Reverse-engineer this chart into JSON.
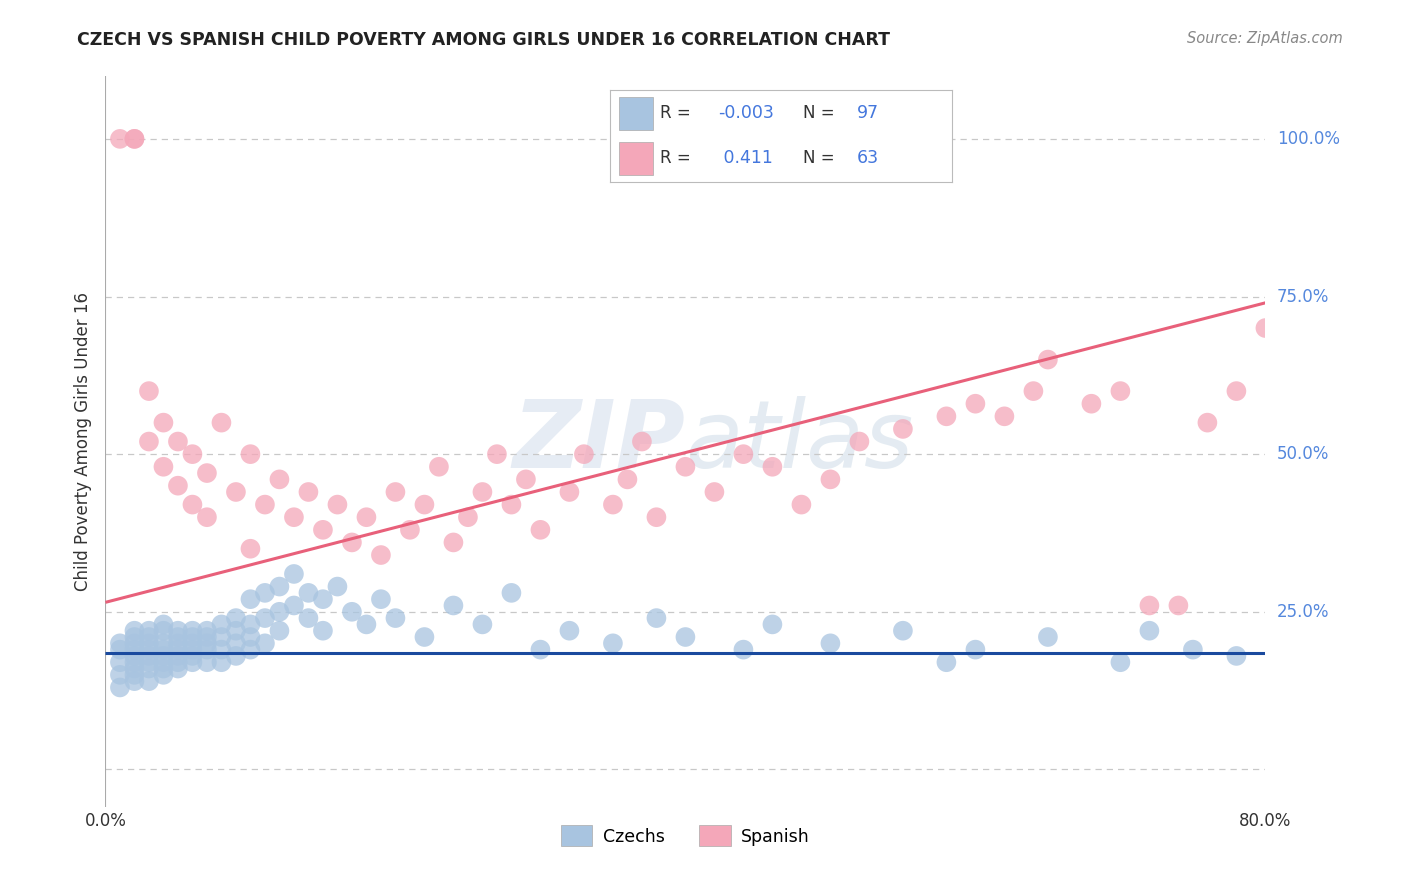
{
  "title": "CZECH VS SPANISH CHILD POVERTY AMONG GIRLS UNDER 16 CORRELATION CHART",
  "source": "Source: ZipAtlas.com",
  "ylabel": "Child Poverty Among Girls Under 16",
  "legend_czech_R": "-0.003",
  "legend_czech_N": "97",
  "legend_spanish_R": "0.411",
  "legend_spanish_N": "63",
  "xlim": [
    0.0,
    0.8
  ],
  "ylim": [
    -0.06,
    1.1
  ],
  "czech_color": "#a8c4e0",
  "spanish_color": "#f4a7b9",
  "czech_line_color": "#1a4a9e",
  "spanish_line_color": "#e8607a",
  "watermark_zip": "ZIP",
  "watermark_atlas": "atlas",
  "background_color": "#ffffff",
  "grid_color": "#c8c8c8",
  "right_y_color": "#5588dd",
  "title_color": "#222222",
  "source_color": "#888888",
  "czech_scatter_x": [
    0.01,
    0.01,
    0.01,
    0.01,
    0.01,
    0.02,
    0.02,
    0.02,
    0.02,
    0.02,
    0.02,
    0.02,
    0.02,
    0.02,
    0.03,
    0.03,
    0.03,
    0.03,
    0.03,
    0.03,
    0.03,
    0.03,
    0.04,
    0.04,
    0.04,
    0.04,
    0.04,
    0.04,
    0.04,
    0.04,
    0.05,
    0.05,
    0.05,
    0.05,
    0.05,
    0.05,
    0.05,
    0.06,
    0.06,
    0.06,
    0.06,
    0.06,
    0.06,
    0.07,
    0.07,
    0.07,
    0.07,
    0.07,
    0.08,
    0.08,
    0.08,
    0.08,
    0.09,
    0.09,
    0.09,
    0.09,
    0.1,
    0.1,
    0.1,
    0.1,
    0.11,
    0.11,
    0.11,
    0.12,
    0.12,
    0.12,
    0.13,
    0.13,
    0.14,
    0.14,
    0.15,
    0.15,
    0.16,
    0.17,
    0.18,
    0.19,
    0.2,
    0.22,
    0.24,
    0.26,
    0.28,
    0.3,
    0.32,
    0.35,
    0.38,
    0.4,
    0.44,
    0.46,
    0.5,
    0.55,
    0.58,
    0.6,
    0.65,
    0.7,
    0.72,
    0.75,
    0.78
  ],
  "czech_scatter_y": [
    0.17,
    0.19,
    0.15,
    0.13,
    0.2,
    0.16,
    0.18,
    0.14,
    0.2,
    0.22,
    0.15,
    0.17,
    0.19,
    0.21,
    0.18,
    0.16,
    0.2,
    0.22,
    0.14,
    0.19,
    0.17,
    0.21,
    0.17,
    0.2,
    0.22,
    0.15,
    0.19,
    0.16,
    0.18,
    0.23,
    0.18,
    0.21,
    0.17,
    0.2,
    0.16,
    0.22,
    0.19,
    0.2,
    0.18,
    0.22,
    0.17,
    0.19,
    0.21,
    0.19,
    0.22,
    0.17,
    0.21,
    0.2,
    0.21,
    0.23,
    0.19,
    0.17,
    0.2,
    0.22,
    0.24,
    0.18,
    0.21,
    0.27,
    0.23,
    0.19,
    0.28,
    0.24,
    0.2,
    0.25,
    0.22,
    0.29,
    0.26,
    0.31,
    0.28,
    0.24,
    0.27,
    0.22,
    0.29,
    0.25,
    0.23,
    0.27,
    0.24,
    0.21,
    0.26,
    0.23,
    0.28,
    0.19,
    0.22,
    0.2,
    0.24,
    0.21,
    0.19,
    0.23,
    0.2,
    0.22,
    0.17,
    0.19,
    0.21,
    0.17,
    0.22,
    0.19,
    0.18
  ],
  "spanish_scatter_x": [
    0.01,
    0.02,
    0.02,
    0.03,
    0.03,
    0.04,
    0.04,
    0.05,
    0.05,
    0.06,
    0.06,
    0.07,
    0.07,
    0.08,
    0.09,
    0.1,
    0.1,
    0.11,
    0.12,
    0.13,
    0.14,
    0.15,
    0.16,
    0.17,
    0.18,
    0.19,
    0.2,
    0.21,
    0.22,
    0.23,
    0.24,
    0.25,
    0.26,
    0.27,
    0.28,
    0.29,
    0.3,
    0.32,
    0.33,
    0.35,
    0.36,
    0.37,
    0.38,
    0.4,
    0.42,
    0.44,
    0.46,
    0.48,
    0.5,
    0.52,
    0.55,
    0.58,
    0.6,
    0.62,
    0.64,
    0.65,
    0.68,
    0.7,
    0.72,
    0.74,
    0.76,
    0.78,
    0.8
  ],
  "spanish_scatter_y": [
    1.0,
    1.0,
    1.0,
    0.6,
    0.52,
    0.48,
    0.55,
    0.45,
    0.52,
    0.42,
    0.5,
    0.4,
    0.47,
    0.55,
    0.44,
    0.35,
    0.5,
    0.42,
    0.46,
    0.4,
    0.44,
    0.38,
    0.42,
    0.36,
    0.4,
    0.34,
    0.44,
    0.38,
    0.42,
    0.48,
    0.36,
    0.4,
    0.44,
    0.5,
    0.42,
    0.46,
    0.38,
    0.44,
    0.5,
    0.42,
    0.46,
    0.52,
    0.4,
    0.48,
    0.44,
    0.5,
    0.48,
    0.42,
    0.46,
    0.52,
    0.54,
    0.56,
    0.58,
    0.56,
    0.6,
    0.65,
    0.58,
    0.6,
    0.26,
    0.26,
    0.55,
    0.6,
    0.7
  ],
  "spanish_line_start_y": 0.265,
  "spanish_line_end_y": 0.74,
  "czech_line_start_y": 0.185,
  "czech_line_end_y": 0.185
}
